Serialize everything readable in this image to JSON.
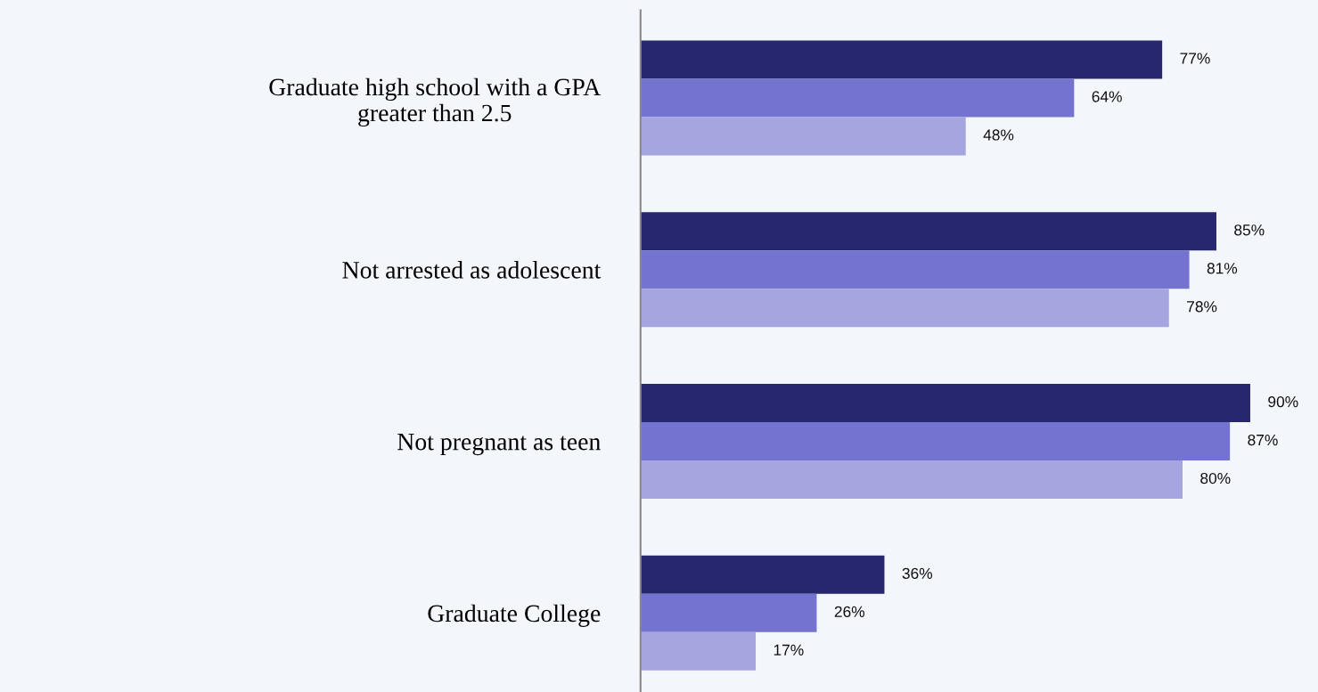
{
  "chart_data": {
    "type": "bar",
    "orientation": "horizontal",
    "categories": [
      "Graduate high school with a GPA greater than 2.5",
      "Not arrested as adolescent",
      "Not pregnant as teen",
      "Graduate College"
    ],
    "series": [
      {
        "color": "#272770",
        "values": [
          77,
          85,
          90,
          36
        ],
        "value_labels": [
          "77%",
          "85%",
          "90%",
          "36%"
        ]
      },
      {
        "color": "#7474d0",
        "values": [
          64,
          81,
          87,
          26
        ],
        "value_labels": [
          "64%",
          "81%",
          "87%",
          "26%"
        ]
      },
      {
        "color": "#a5a5e0",
        "values": [
          48,
          78,
          80,
          17
        ],
        "value_labels": [
          "48%",
          "78%",
          "80%",
          "17%"
        ]
      }
    ],
    "xlim": [
      0,
      100
    ],
    "tick_labels": "y",
    "grid": false,
    "legend": false
  }
}
